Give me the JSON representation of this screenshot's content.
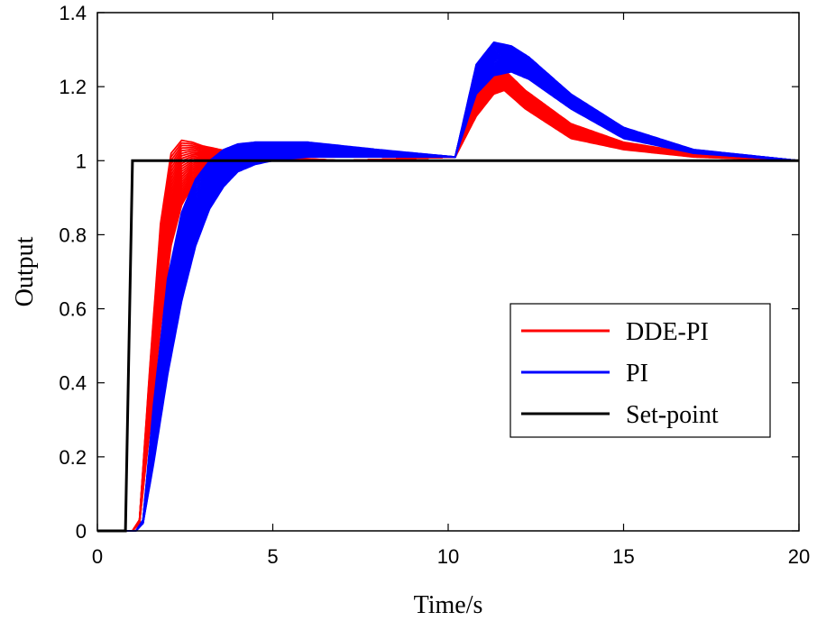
{
  "chart_data": {
    "type": "line",
    "title": "",
    "xlabel": "Time/s",
    "ylabel": "Output",
    "xlim": [
      0,
      20
    ],
    "ylim": [
      0,
      1.4
    ],
    "xticks": [
      0,
      5,
      10,
      15,
      20
    ],
    "xtick_labels": [
      "0",
      "5",
      "10",
      "15",
      "20"
    ],
    "yticks": [
      0,
      0.2,
      0.4,
      0.6,
      0.8,
      1.0,
      1.2,
      1.4
    ],
    "ytick_labels": [
      "0",
      "0.2",
      "0.4",
      "0.6",
      "0.8",
      "1",
      "1.2",
      "1.4"
    ],
    "grid": false,
    "legend_position": "center-right",
    "series": [
      {
        "name": "DDE-PI",
        "color": "#ff0000",
        "description": "ensemble of many runs",
        "x": [
          0,
          1.0,
          1.2,
          1.5,
          1.8,
          2.1,
          2.4,
          2.7,
          3.0,
          3.5,
          4.0,
          5.0,
          7.0,
          10.2,
          10.8,
          11.3,
          11.6,
          12.2,
          13.5,
          15.0,
          17.0,
          20.0
        ],
        "y_low": [
          0,
          0,
          0.02,
          0.28,
          0.55,
          0.77,
          0.88,
          0.93,
          0.96,
          0.98,
          0.99,
          1.0,
          1.0,
          1.01,
          1.12,
          1.18,
          1.19,
          1.14,
          1.06,
          1.03,
          1.01,
          1.0
        ],
        "y_high": [
          0,
          0,
          0.03,
          0.45,
          0.83,
          1.02,
          1.055,
          1.05,
          1.04,
          1.03,
          1.02,
          1.01,
          1.0,
          1.01,
          1.18,
          1.25,
          1.245,
          1.19,
          1.1,
          1.05,
          1.02,
          1.0
        ]
      },
      {
        "name": "PI",
        "color": "#0000ff",
        "description": "ensemble of many runs",
        "x": [
          0,
          1.1,
          1.3,
          1.6,
          2.0,
          2.4,
          2.8,
          3.2,
          3.6,
          4.0,
          4.5,
          5.0,
          6.0,
          8.0,
          10.2,
          10.8,
          11.3,
          11.8,
          12.3,
          13.5,
          15.0,
          17.0,
          20.0
        ],
        "y_low": [
          0,
          0,
          0.02,
          0.18,
          0.42,
          0.62,
          0.77,
          0.87,
          0.93,
          0.97,
          0.99,
          1.0,
          1.01,
          1.01,
          1.01,
          1.18,
          1.23,
          1.24,
          1.22,
          1.14,
          1.06,
          1.02,
          1.0
        ],
        "y_high": [
          0,
          0,
          0.03,
          0.34,
          0.68,
          0.86,
          0.95,
          1.0,
          1.03,
          1.045,
          1.05,
          1.05,
          1.05,
          1.03,
          1.01,
          1.26,
          1.32,
          1.31,
          1.28,
          1.18,
          1.09,
          1.03,
          1.0
        ]
      },
      {
        "name": "Set-point",
        "color": "#000000",
        "x": [
          0,
          0.8,
          1.0,
          20.0
        ],
        "y": [
          0,
          0,
          1,
          1
        ]
      }
    ]
  }
}
